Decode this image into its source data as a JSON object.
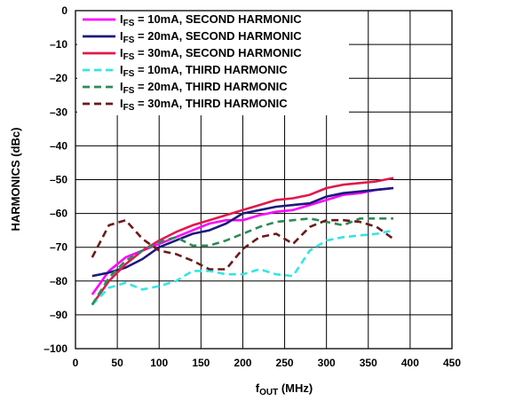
{
  "chart_data": {
    "type": "line",
    "xlabel": "fOUT (MHz)",
    "xlabel_main": "f",
    "xlabel_sub": "OUT",
    "xlabel_unit": " (MHz)",
    "ylabel": "HARMONICS (dBc)",
    "xlim": [
      0,
      450
    ],
    "ylim": [
      -100,
      0
    ],
    "xticks": [
      0,
      50,
      100,
      150,
      200,
      250,
      300,
      350,
      400,
      450
    ],
    "yticks": [
      0,
      -10,
      -20,
      -30,
      -40,
      -50,
      -60,
      -70,
      -80,
      -90,
      -100
    ],
    "ytick_labels": [
      "0",
      "–10",
      "–20",
      "–30",
      "–40",
      "–50",
      "–60",
      "–70",
      "–80",
      "–90",
      "–100"
    ],
    "grid": true,
    "legend_position": "top-left",
    "series": [
      {
        "name": "IFS = 10mA, SECOND HARMONIC",
        "label_main": "I",
        "label_sub": "FS",
        "label_rest": " = 10mA, SECOND HARMONIC",
        "color": "#ff00ff",
        "dash": "solid",
        "x": [
          20,
          40,
          60,
          80,
          100,
          120,
          140,
          160,
          180,
          200,
          220,
          240,
          260,
          280,
          300,
          320,
          340,
          360,
          380
        ],
        "y": [
          -84,
          -77,
          -73,
          -71,
          -69,
          -67,
          -65,
          -63,
          -62,
          -62,
          -60.5,
          -59.5,
          -59,
          -57.5,
          -56,
          -54.5,
          -54,
          -53,
          -52.5
        ]
      },
      {
        "name": "IFS = 20mA, SECOND HARMONIC",
        "label_main": "I",
        "label_sub": "FS",
        "label_rest": " = 20mA, SECOND HARMONIC",
        "color": "#1a1a7a",
        "dash": "solid",
        "x": [
          20,
          40,
          60,
          80,
          100,
          120,
          140,
          160,
          180,
          200,
          220,
          240,
          260,
          280,
          300,
          320,
          340,
          360,
          380
        ],
        "y": [
          -78.5,
          -77.5,
          -76,
          -73.5,
          -70,
          -68,
          -66,
          -65,
          -63,
          -60,
          -59,
          -58,
          -57.5,
          -57,
          -55,
          -54,
          -53.5,
          -53,
          -52.5
        ]
      },
      {
        "name": "IFS = 30mA, SECOND HARMONIC",
        "label_main": "I",
        "label_sub": "FS",
        "label_rest": " = 30mA, SECOND HARMONIC",
        "color": "#e0194a",
        "dash": "solid",
        "x": [
          20,
          40,
          60,
          80,
          100,
          120,
          140,
          160,
          180,
          200,
          220,
          240,
          260,
          280,
          300,
          320,
          340,
          360,
          380
        ],
        "y": [
          -87,
          -80,
          -75,
          -71,
          -68,
          -65.5,
          -63.5,
          -62,
          -60.5,
          -59,
          -57.5,
          -56,
          -55.5,
          -54.5,
          -52.5,
          -51.5,
          -51,
          -50.5,
          -49.5
        ]
      },
      {
        "name": "IFS = 10mA, THIRD HARMONIC",
        "label_main": "I",
        "label_sub": "FS",
        "label_rest": " = 10mA, THIRD HARMONIC",
        "color": "#33e5e5",
        "dash": "dashed",
        "x": [
          20,
          40,
          60,
          80,
          100,
          120,
          140,
          160,
          180,
          200,
          220,
          240,
          260,
          280,
          300,
          320,
          340,
          360,
          380
        ],
        "y": [
          -87,
          -82,
          -80.5,
          -82.5,
          -81.5,
          -80,
          -77,
          -77,
          -78,
          -78,
          -76.5,
          -78,
          -78.5,
          -71,
          -68,
          -67,
          -66.5,
          -66,
          -65
        ]
      },
      {
        "name": "IFS = 20mA, THIRD HARMONIC",
        "label_main": "I",
        "label_sub": "FS",
        "label_rest": " = 20mA, THIRD HARMONIC",
        "color": "#2e8b57",
        "dash": "dashed",
        "x": [
          20,
          40,
          60,
          80,
          100,
          120,
          140,
          160,
          180,
          200,
          220,
          240,
          260,
          280,
          300,
          320,
          340,
          360,
          380
        ],
        "y": [
          -87,
          -79,
          -74,
          -71,
          -68.5,
          -67,
          -69.5,
          -69.5,
          -68,
          -66,
          -64,
          -62.5,
          -62,
          -61.5,
          -62.5,
          -63.5,
          -61.5,
          -61.5,
          -61.5
        ]
      },
      {
        "name": "IFS = 30mA, THIRD HARMONIC",
        "label_main": "I",
        "label_sub": "FS",
        "label_rest": " = 30mA, THIRD HARMONIC",
        "color": "#6b1a1a",
        "dash": "dashed",
        "x": [
          20,
          40,
          60,
          80,
          100,
          120,
          140,
          160,
          180,
          200,
          220,
          240,
          260,
          280,
          300,
          320,
          340,
          360,
          380
        ],
        "y": [
          -73,
          -63.5,
          -62,
          -67.5,
          -71,
          -72,
          -74,
          -76.5,
          -76.5,
          -70.5,
          -67,
          -66,
          -69,
          -64,
          -62,
          -62,
          -62.5,
          -64,
          -67.5
        ]
      }
    ]
  }
}
